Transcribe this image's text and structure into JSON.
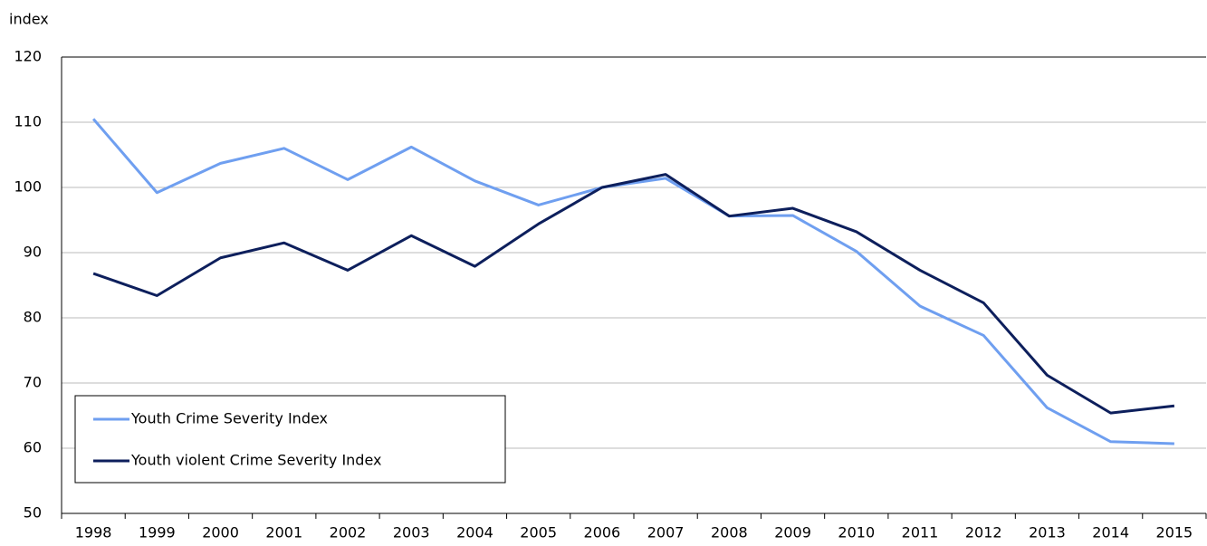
{
  "chart_data": {
    "type": "line",
    "y_label": "index",
    "categories": [
      "1998",
      "1999",
      "2000",
      "2001",
      "2002",
      "2003",
      "2004",
      "2005",
      "2006",
      "2007",
      "2008",
      "2009",
      "2010",
      "2011",
      "2012",
      "2013",
      "2014",
      "2015"
    ],
    "series": [
      {
        "name": "Youth Crime Severity Index",
        "color": "#6f9ff0",
        "values": [
          110.5,
          99.2,
          103.7,
          106,
          101.2,
          106.2,
          101,
          97.3,
          100,
          101.4,
          95.6,
          95.7,
          90.2,
          81.8,
          77.3,
          66.2,
          61,
          60.7
        ]
      },
      {
        "name": "Youth violent Crime Severity Index",
        "color": "#0d1f5c",
        "values": [
          86.8,
          83.4,
          89.2,
          91.5,
          87.3,
          92.6,
          87.9,
          94.4,
          100,
          102,
          95.6,
          96.8,
          93.2,
          87.3,
          82.3,
          71.2,
          65.4,
          66.5
        ]
      }
    ],
    "ylim": [
      50,
      120
    ],
    "yticks": [
      50,
      60,
      70,
      80,
      90,
      100,
      110,
      120
    ],
    "grid": true,
    "legend": "lower left"
  }
}
